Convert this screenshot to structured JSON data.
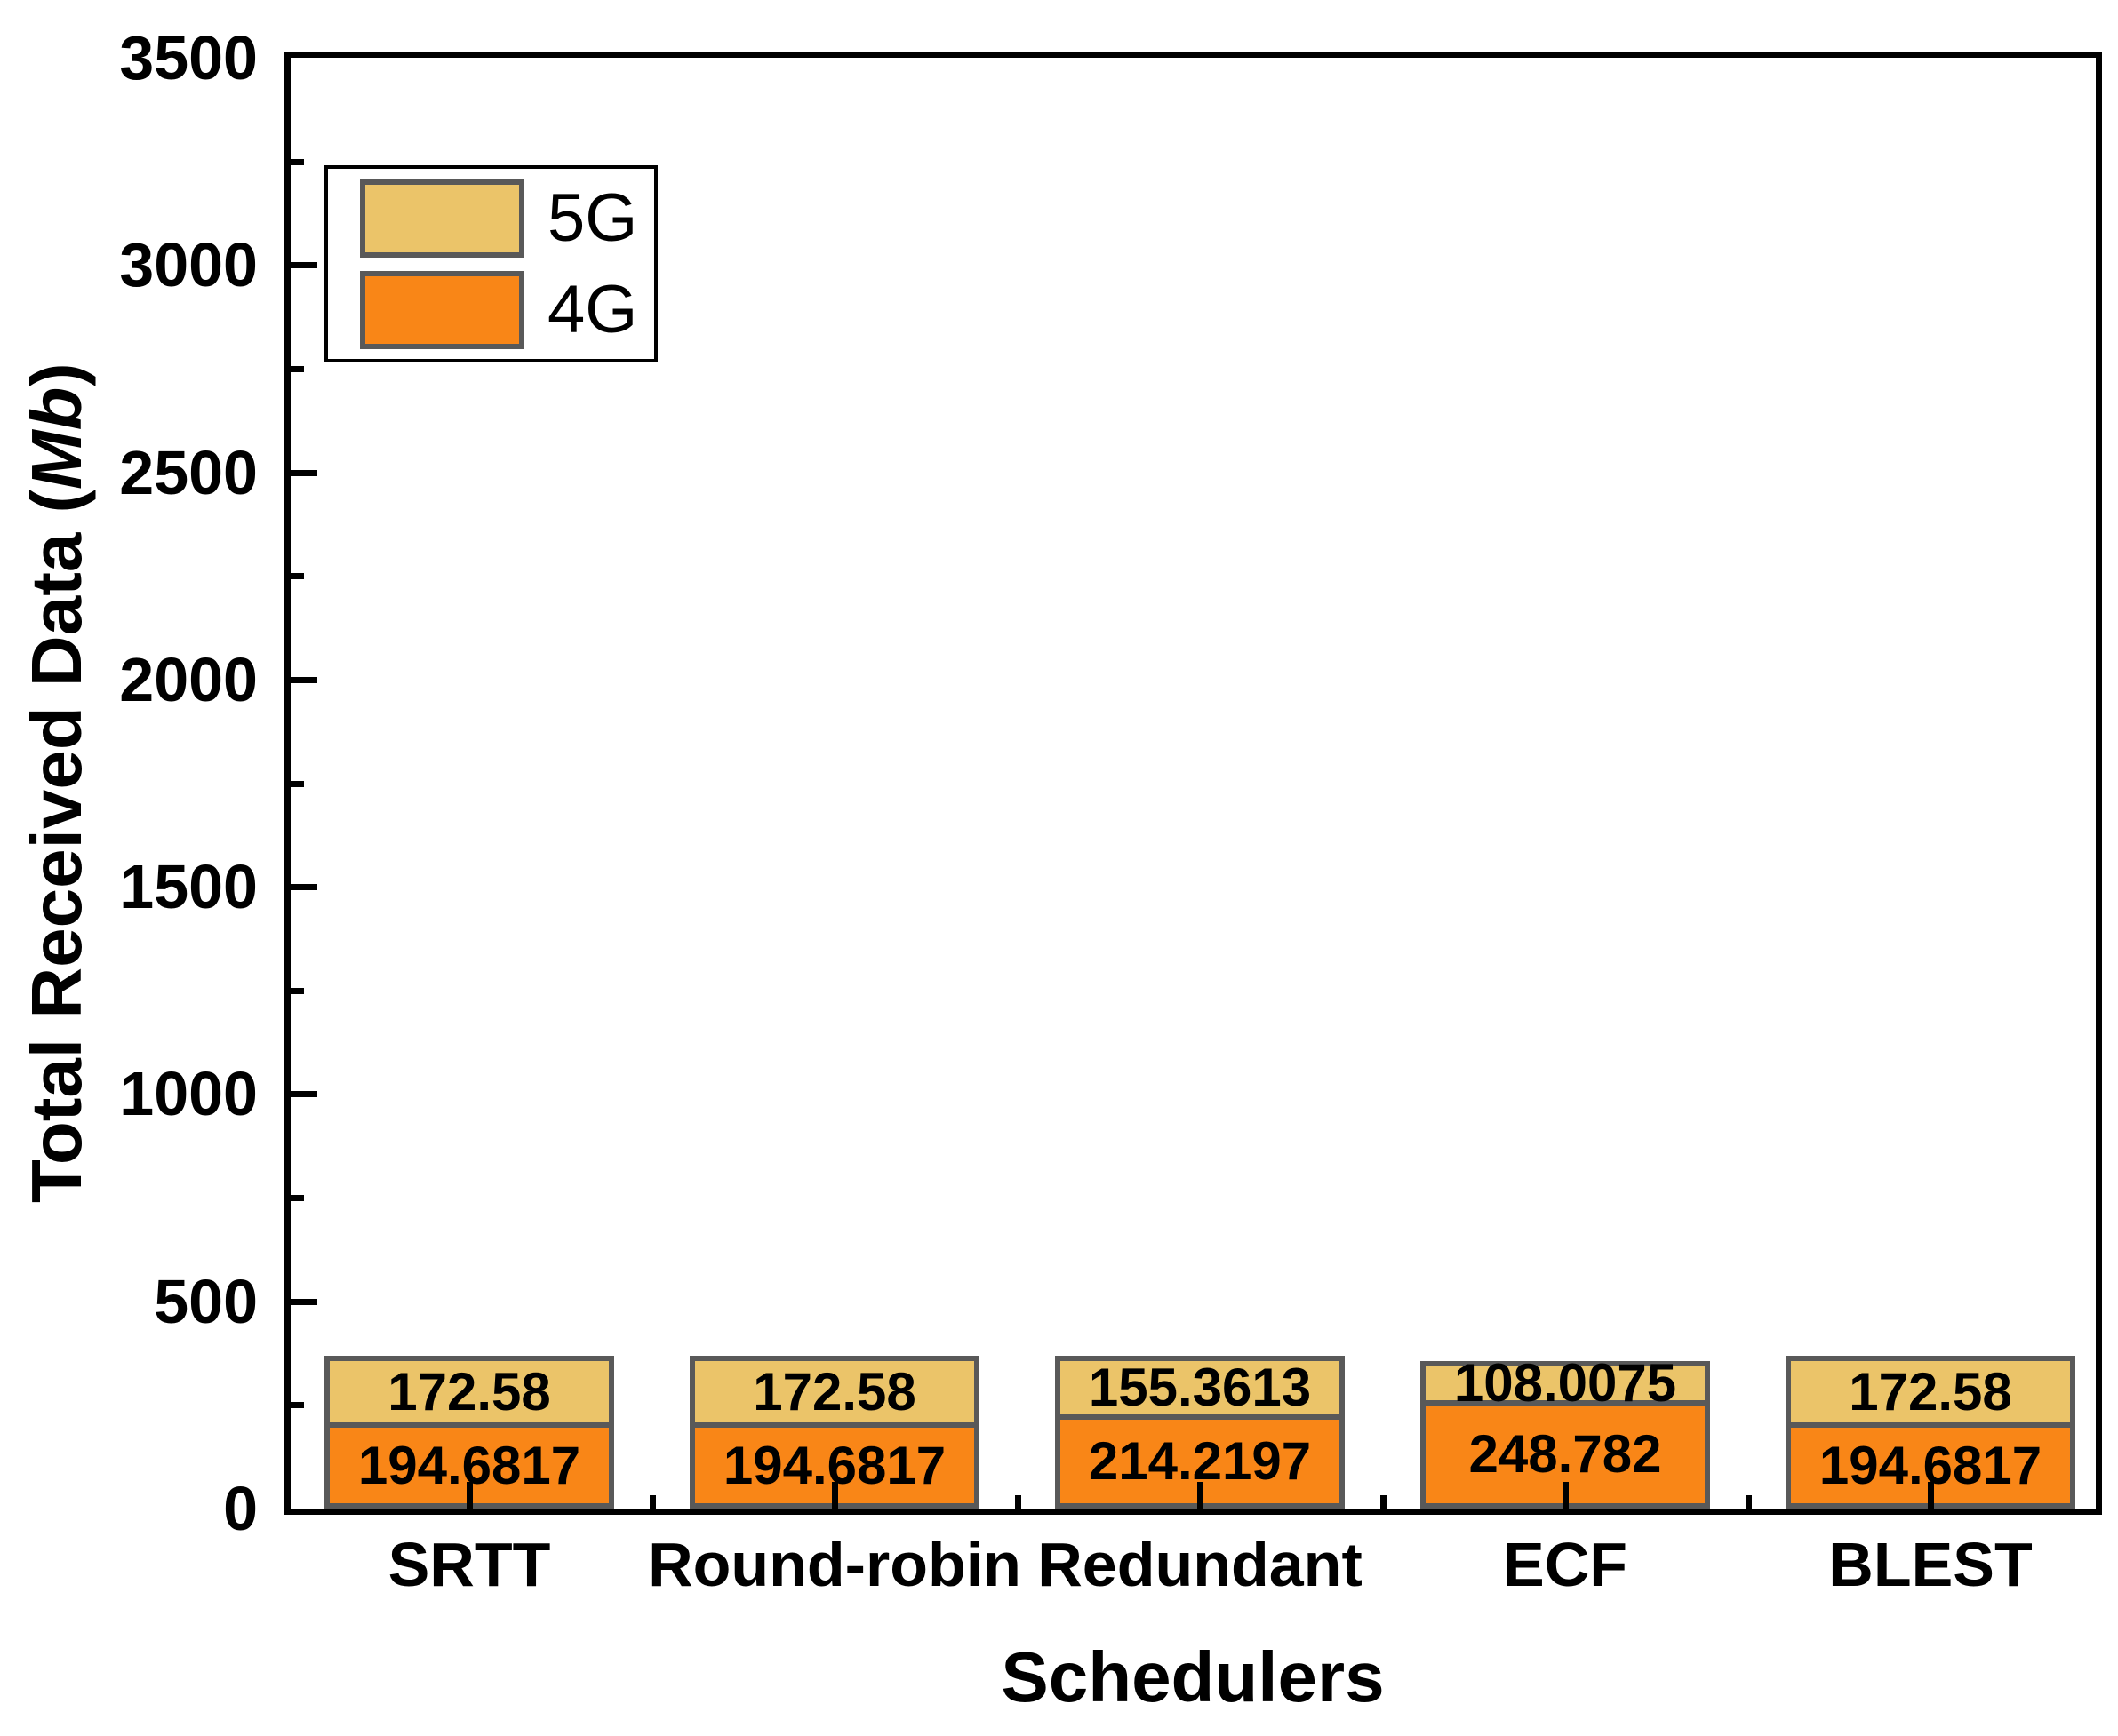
{
  "chart_data": {
    "type": "bar",
    "stacked": true,
    "title": "",
    "xlabel": "Schedulers",
    "ylabel": "Total Received Data (Mb)",
    "ylabel_prefix": "Total Received Data (",
    "ylabel_italic": "Mb",
    "ylabel_suffix": ")",
    "categories": [
      "SRTT",
      "Round-robin",
      "Redundant",
      "ECF",
      "BLEST"
    ],
    "series": [
      {
        "name": "5G",
        "color": "#EBC469",
        "border_color": "#595959",
        "values": [
          172.58,
          172.58,
          155.3613,
          108.0075,
          172.58
        ],
        "labels": [
          "172.58",
          "172.58",
          "155.3613",
          "108.0075",
          "172.58"
        ]
      },
      {
        "name": "4G",
        "color": "#F98617",
        "border_color": "#595959",
        "values": [
          194.6817,
          194.6817,
          214.2197,
          248.782,
          194.6817
        ],
        "labels": [
          "194.6817",
          "194.6817",
          "214.2197",
          "248.782",
          "194.6817"
        ]
      }
    ],
    "stack_order_bottom_to_top": [
      "4G",
      "5G"
    ],
    "ylim": [
      0,
      3500
    ],
    "yticks": [
      0,
      500,
      1000,
      1500,
      2000,
      2500,
      3000,
      3500
    ],
    "ytick_labels": [
      "0",
      "500",
      "1000",
      "1500",
      "2000",
      "2500",
      "3000",
      "3500"
    ],
    "y_minor_tick_step": 250,
    "grid": false,
    "legend_position": "upper-left",
    "legend_entries": [
      "5G",
      "4G"
    ],
    "frame": true,
    "tick_direction": "in",
    "value_labels_shown": true,
    "colors": {
      "axis": "#000000",
      "bar_border": "#595959",
      "background": "#ffffff",
      "text": "#000000"
    }
  }
}
